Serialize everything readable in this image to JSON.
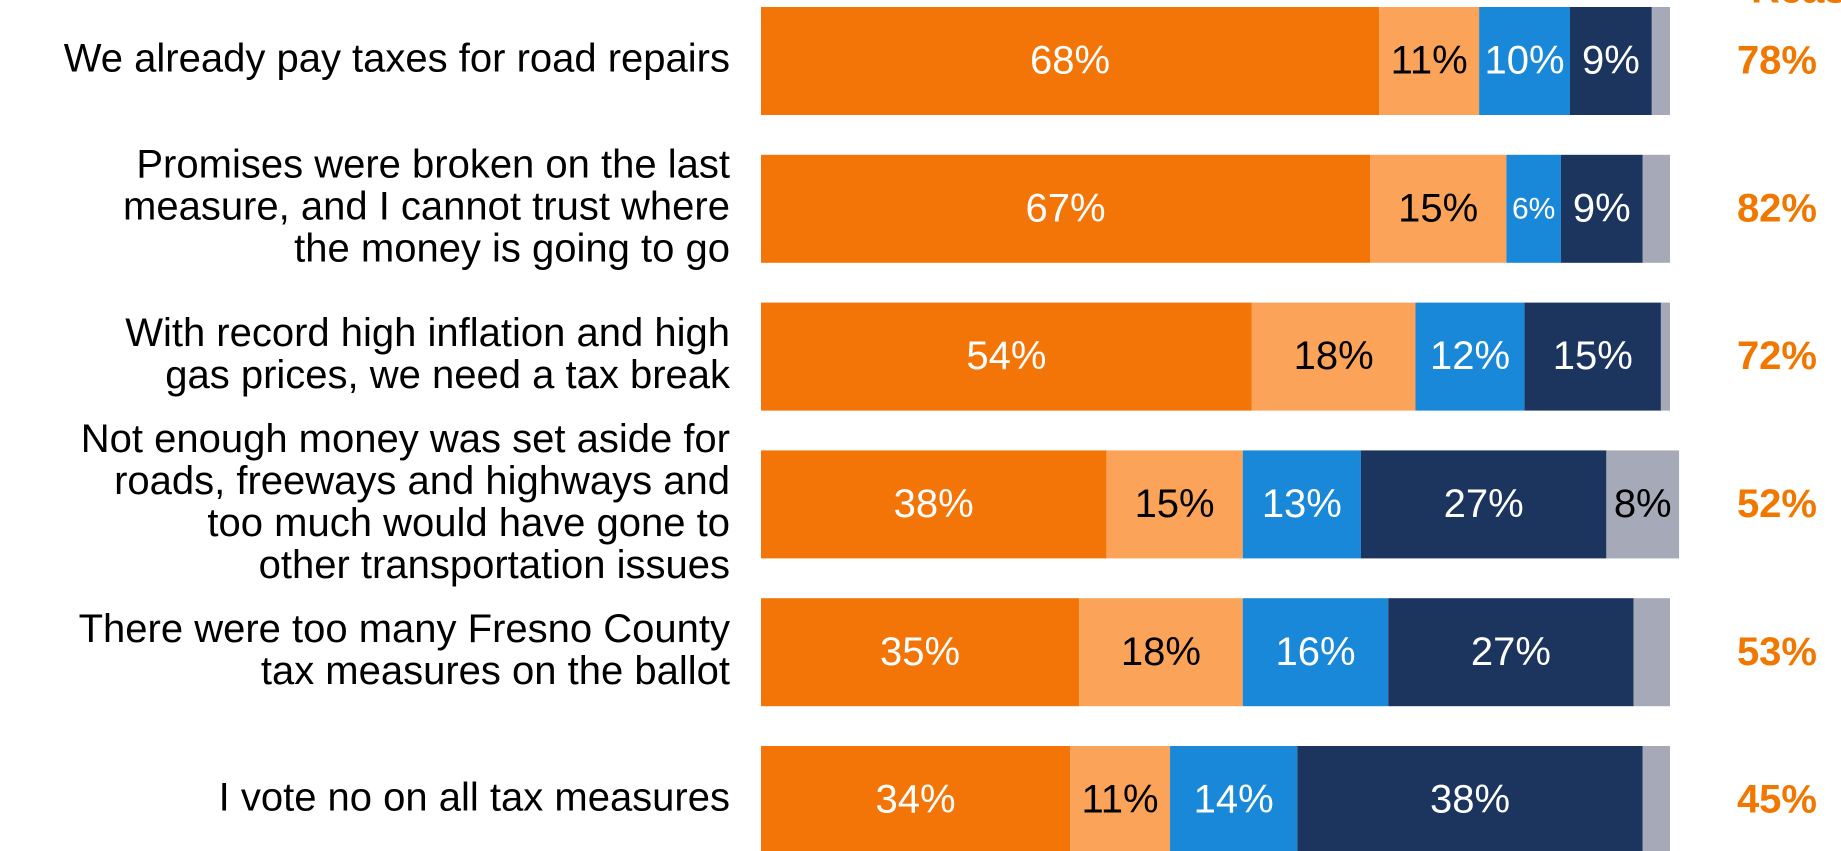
{
  "chart_data": {
    "type": "stacked-bar-horizontal",
    "categories": [
      [
        "We already pay taxes for road repairs"
      ],
      [
        "Promises were broken on the last",
        "measure, and I cannot trust where",
        "the money is going to go"
      ],
      [
        "With record high inflation and high",
        "gas prices, we need a tax break"
      ],
      [
        "Not enough money was set aside for",
        "roads, freeways and highways and",
        "too much would have gone to",
        "other transportation issues"
      ],
      [
        "There were too many Fresno County",
        "tax measures on the ballot"
      ],
      [
        "I vote no on all tax measures"
      ]
    ],
    "xlim": [
      0,
      100
    ],
    "series": [
      {
        "color": "#f47507",
        "label_color": "#ffffff",
        "values": [
          68,
          67,
          54,
          38,
          35,
          34
        ],
        "value_labels": [
          "68%",
          "67%",
          "54%",
          "38%",
          "35%",
          "34%"
        ]
      },
      {
        "color": "#fca35a",
        "label_color": "#000000",
        "values": [
          11,
          15,
          18,
          15,
          18,
          11
        ],
        "value_labels": [
          "11%",
          "15%",
          "18%",
          "15%",
          "18%",
          "11%"
        ]
      },
      {
        "color": "#1a88d8",
        "label_color": "#ffffff",
        "values": [
          10,
          6,
          12,
          13,
          16,
          14
        ],
        "value_labels": [
          "10%",
          "6%",
          "12%",
          "13%",
          "16%",
          "14%"
        ]
      },
      {
        "color": "#1c355e",
        "label_color": "#ffffff",
        "values": [
          9,
          9,
          15,
          27,
          27,
          38
        ],
        "value_labels": [
          "9%",
          "9%",
          "15%",
          "27%",
          "27%",
          "38%"
        ]
      },
      {
        "color": "#a5a9b8",
        "label_color": "#000000",
        "values": [
          2,
          3,
          1,
          8,
          4,
          3
        ],
        "value_labels": [
          null,
          null,
          null,
          "8%",
          null,
          null
        ]
      }
    ],
    "reason_header": "Reason",
    "reason_color": "#f07800",
    "reason_values": [
      78,
      82,
      72,
      52,
      53,
      45
    ],
    "reason_labels": [
      "78%",
      "82%",
      "72%",
      "52%",
      "53%",
      "45%"
    ]
  }
}
